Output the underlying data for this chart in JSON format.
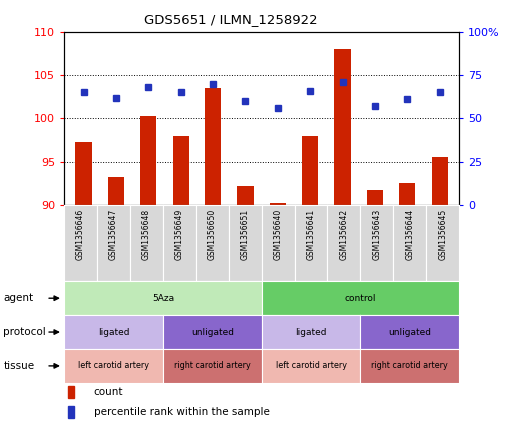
{
  "title": "GDS5651 / ILMN_1258922",
  "samples": [
    "GSM1356646",
    "GSM1356647",
    "GSM1356648",
    "GSM1356649",
    "GSM1356650",
    "GSM1356651",
    "GSM1356640",
    "GSM1356641",
    "GSM1356642",
    "GSM1356643",
    "GSM1356644",
    "GSM1356645"
  ],
  "count_values": [
    97.3,
    93.3,
    100.3,
    98.0,
    103.5,
    92.2,
    90.3,
    98.0,
    108.0,
    91.7,
    92.5,
    95.5
  ],
  "percentile_values": [
    65,
    62,
    68,
    65,
    70,
    60,
    56,
    66,
    71,
    57,
    61,
    65
  ],
  "ylim_left": [
    90,
    110
  ],
  "ylim_right": [
    0,
    100
  ],
  "yticks_left": [
    90,
    95,
    100,
    105,
    110
  ],
  "yticks_right": [
    0,
    25,
    50,
    75,
    100
  ],
  "bar_color": "#cc2200",
  "dot_color": "#2233bb",
  "agent_groups": [
    {
      "label": "5Aza",
      "start": 0,
      "end": 6,
      "color": "#c0eab8"
    },
    {
      "label": "control",
      "start": 6,
      "end": 12,
      "color": "#66cc66"
    }
  ],
  "protocol_groups": [
    {
      "label": "ligated",
      "start": 0,
      "end": 3,
      "color": "#c8b8e8"
    },
    {
      "label": "unligated",
      "start": 3,
      "end": 6,
      "color": "#8866cc"
    },
    {
      "label": "ligated",
      "start": 6,
      "end": 9,
      "color": "#c8b8e8"
    },
    {
      "label": "unligated",
      "start": 9,
      "end": 12,
      "color": "#8866cc"
    }
  ],
  "tissue_groups": [
    {
      "label": "left carotid artery",
      "start": 0,
      "end": 3,
      "color": "#f0b8b0"
    },
    {
      "label": "right carotid artery",
      "start": 3,
      "end": 6,
      "color": "#cc7070"
    },
    {
      "label": "left carotid artery",
      "start": 6,
      "end": 9,
      "color": "#f0b8b0"
    },
    {
      "label": "right carotid artery",
      "start": 9,
      "end": 12,
      "color": "#cc7070"
    }
  ],
  "sample_cell_color": "#d8d8d8",
  "row_labels": [
    "agent",
    "protocol",
    "tissue"
  ],
  "legend_items": [
    {
      "color": "#cc2200",
      "label": "count"
    },
    {
      "color": "#2233bb",
      "label": "percentile rank within the sample"
    }
  ],
  "background_color": "#ffffff"
}
